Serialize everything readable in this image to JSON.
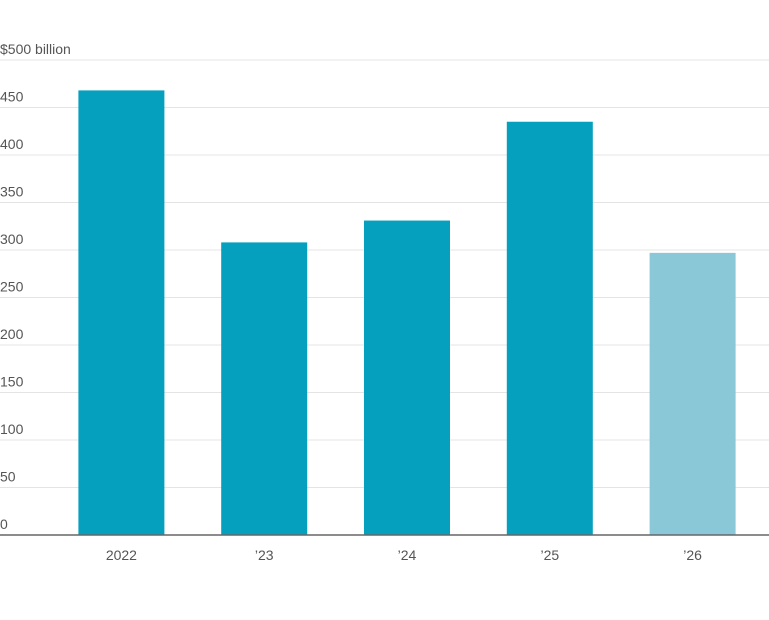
{
  "chart_data": {
    "type": "bar",
    "categories": [
      "2022",
      "’23",
      "’24",
      "’25",
      "’26"
    ],
    "values": [
      468,
      308,
      331,
      435,
      297
    ],
    "colors": [
      "#04a0bd",
      "#04a0bd",
      "#04a0bd",
      "#04a0bd",
      "#8ac8d8"
    ],
    "ylim": [
      0,
      500
    ],
    "yticks": [
      0,
      50,
      100,
      150,
      200,
      250,
      300,
      350,
      400,
      450,
      {
        "value": 500,
        "label": "$500 billion"
      }
    ],
    "grid": true
  }
}
